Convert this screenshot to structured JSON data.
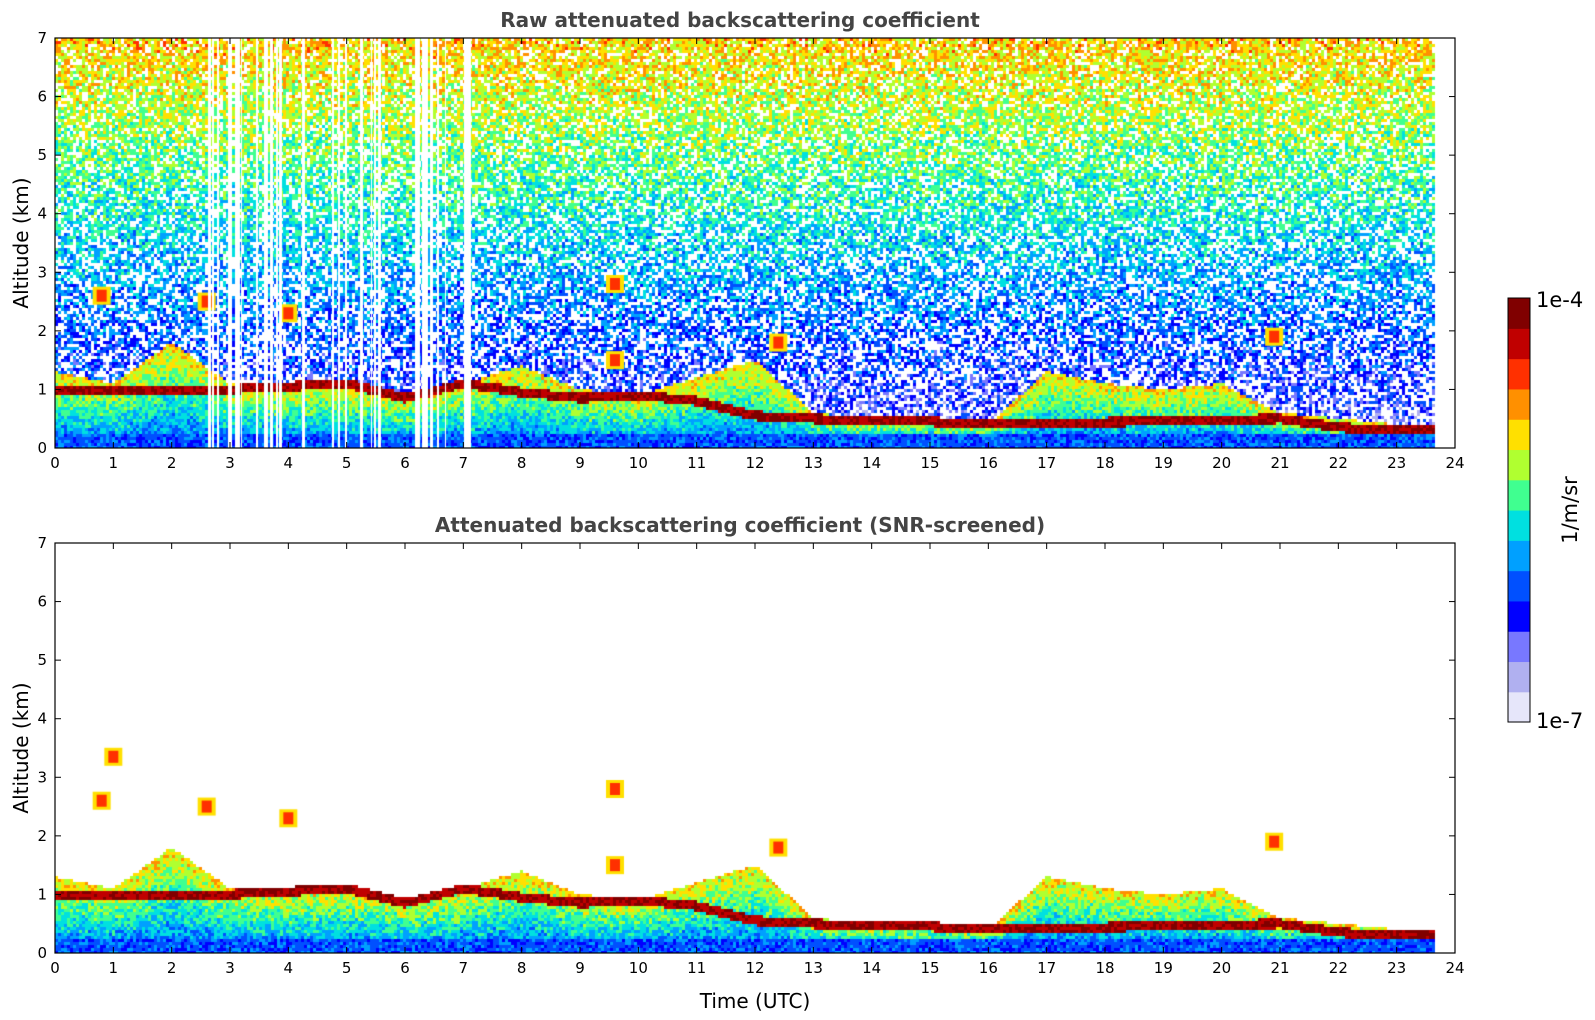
{
  "chart_data": [
    {
      "type": "heatmap",
      "title": "Raw attenuated backscattering coefficient",
      "xlabel": "",
      "ylabel": "Altitude (km)",
      "xlim": [
        0,
        24
      ],
      "ylim": [
        0,
        7
      ],
      "xticks": [
        "0",
        "1",
        "2",
        "3",
        "4",
        "5",
        "6",
        "7",
        "8",
        "9",
        "10",
        "11",
        "12",
        "13",
        "14",
        "15",
        "16",
        "17",
        "18",
        "19",
        "20",
        "21",
        "22",
        "23",
        "24"
      ],
      "yticks": [
        "0",
        "1",
        "2",
        "3",
        "4",
        "5",
        "6",
        "7"
      ],
      "data_end_hour": 23.65,
      "screened": false,
      "aerosol_layer_top_km": [
        [
          0,
          1.3
        ],
        [
          1,
          1.1
        ],
        [
          2,
          1.8
        ],
        [
          3,
          1.1
        ],
        [
          4,
          1.1
        ],
        [
          5,
          1.1
        ],
        [
          6,
          0.9
        ],
        [
          7,
          1.1
        ],
        [
          8,
          1.4
        ],
        [
          9,
          1.0
        ],
        [
          10,
          0.9
        ],
        [
          11,
          1.2
        ],
        [
          12,
          1.5
        ],
        [
          13,
          0.6
        ],
        [
          14,
          0.5
        ],
        [
          15,
          0.5
        ],
        [
          16,
          0.4
        ],
        [
          17,
          1.3
        ],
        [
          18,
          1.1
        ],
        [
          19,
          1.0
        ],
        [
          20,
          1.1
        ],
        [
          21,
          0.6
        ],
        [
          22,
          0.5
        ],
        [
          23,
          0.4
        ]
      ],
      "strong_layer_km": [
        [
          3,
          1.0
        ],
        [
          4,
          1.05
        ],
        [
          5,
          1.1
        ],
        [
          6,
          0.85
        ],
        [
          7,
          1.1
        ],
        [
          8,
          0.95
        ],
        [
          9,
          0.85
        ],
        [
          10,
          0.9
        ],
        [
          11,
          0.8
        ],
        [
          12,
          0.55
        ],
        [
          13,
          0.5
        ],
        [
          14,
          0.45
        ],
        [
          15,
          0.45
        ],
        [
          16,
          0.4
        ],
        [
          21,
          0.5
        ],
        [
          22,
          0.35
        ],
        [
          23,
          0.3
        ]
      ],
      "cloud_features": [
        {
          "time": 0.8,
          "altitude_km": 2.6
        },
        {
          "time": 2.6,
          "altitude_km": 2.5
        },
        {
          "time": 4.0,
          "altitude_km": 2.3
        },
        {
          "time": 9.6,
          "altitude_km": 2.8
        },
        {
          "time": 9.6,
          "altitude_km": 1.5
        },
        {
          "time": 12.4,
          "altitude_km": 1.8
        },
        {
          "time": 20.9,
          "altitude_km": 1.9
        }
      ]
    },
    {
      "type": "heatmap",
      "title": "Attenuated backscattering coefficient (SNR-screened)",
      "xlabel": "Time (UTC)",
      "ylabel": "Altitude (km)",
      "xlim": [
        0,
        24
      ],
      "ylim": [
        0,
        7
      ],
      "xticks": [
        "0",
        "1",
        "2",
        "3",
        "4",
        "5",
        "6",
        "7",
        "8",
        "9",
        "10",
        "11",
        "12",
        "13",
        "14",
        "15",
        "16",
        "17",
        "18",
        "19",
        "20",
        "21",
        "22",
        "23",
        "24"
      ],
      "yticks": [
        "0",
        "1",
        "2",
        "3",
        "4",
        "5",
        "6",
        "7"
      ],
      "data_end_hour": 23.65,
      "screened": true,
      "aerosol_layer_top_km": [
        [
          0,
          1.3
        ],
        [
          1,
          1.1
        ],
        [
          2,
          1.8
        ],
        [
          3,
          1.1
        ],
        [
          4,
          1.1
        ],
        [
          5,
          1.1
        ],
        [
          6,
          0.9
        ],
        [
          7,
          1.1
        ],
        [
          8,
          1.4
        ],
        [
          9,
          1.0
        ],
        [
          10,
          0.9
        ],
        [
          11,
          1.2
        ],
        [
          12,
          1.5
        ],
        [
          13,
          0.6
        ],
        [
          14,
          0.5
        ],
        [
          15,
          0.5
        ],
        [
          16,
          0.4
        ],
        [
          17,
          1.3
        ],
        [
          18,
          1.1
        ],
        [
          19,
          1.0
        ],
        [
          20,
          1.1
        ],
        [
          21,
          0.6
        ],
        [
          22,
          0.5
        ],
        [
          23,
          0.4
        ]
      ],
      "strong_layer_km": [
        [
          3,
          1.0
        ],
        [
          4,
          1.05
        ],
        [
          5,
          1.1
        ],
        [
          6,
          0.85
        ],
        [
          7,
          1.1
        ],
        [
          8,
          0.95
        ],
        [
          9,
          0.85
        ],
        [
          10,
          0.9
        ],
        [
          11,
          0.8
        ],
        [
          12,
          0.55
        ],
        [
          13,
          0.5
        ],
        [
          14,
          0.45
        ],
        [
          15,
          0.45
        ],
        [
          16,
          0.4
        ],
        [
          21,
          0.5
        ],
        [
          22,
          0.35
        ],
        [
          23,
          0.3
        ]
      ],
      "cloud_features": [
        {
          "time": 0.8,
          "altitude_km": 2.6
        },
        {
          "time": 1.0,
          "altitude_km": 3.35
        },
        {
          "time": 2.6,
          "altitude_km": 2.5
        },
        {
          "time": 4.0,
          "altitude_km": 2.3
        },
        {
          "time": 9.6,
          "altitude_km": 2.8
        },
        {
          "time": 9.6,
          "altitude_km": 1.5
        },
        {
          "time": 12.4,
          "altitude_km": 1.8
        },
        {
          "time": 20.9,
          "altitude_km": 1.9
        }
      ]
    }
  ],
  "colorbar": {
    "min_label": "1e-7",
    "max_label": "1e-4",
    "unit_label": "1/m/sr",
    "scale": "log",
    "colors": [
      "#e6e6fa",
      "#b0b0f0",
      "#7878ff",
      "#0000ff",
      "#0050ff",
      "#00a0ff",
      "#00e0e0",
      "#40ff90",
      "#b0ff30",
      "#ffe000",
      "#ff9000",
      "#ff3000",
      "#c00000",
      "#800000"
    ]
  }
}
